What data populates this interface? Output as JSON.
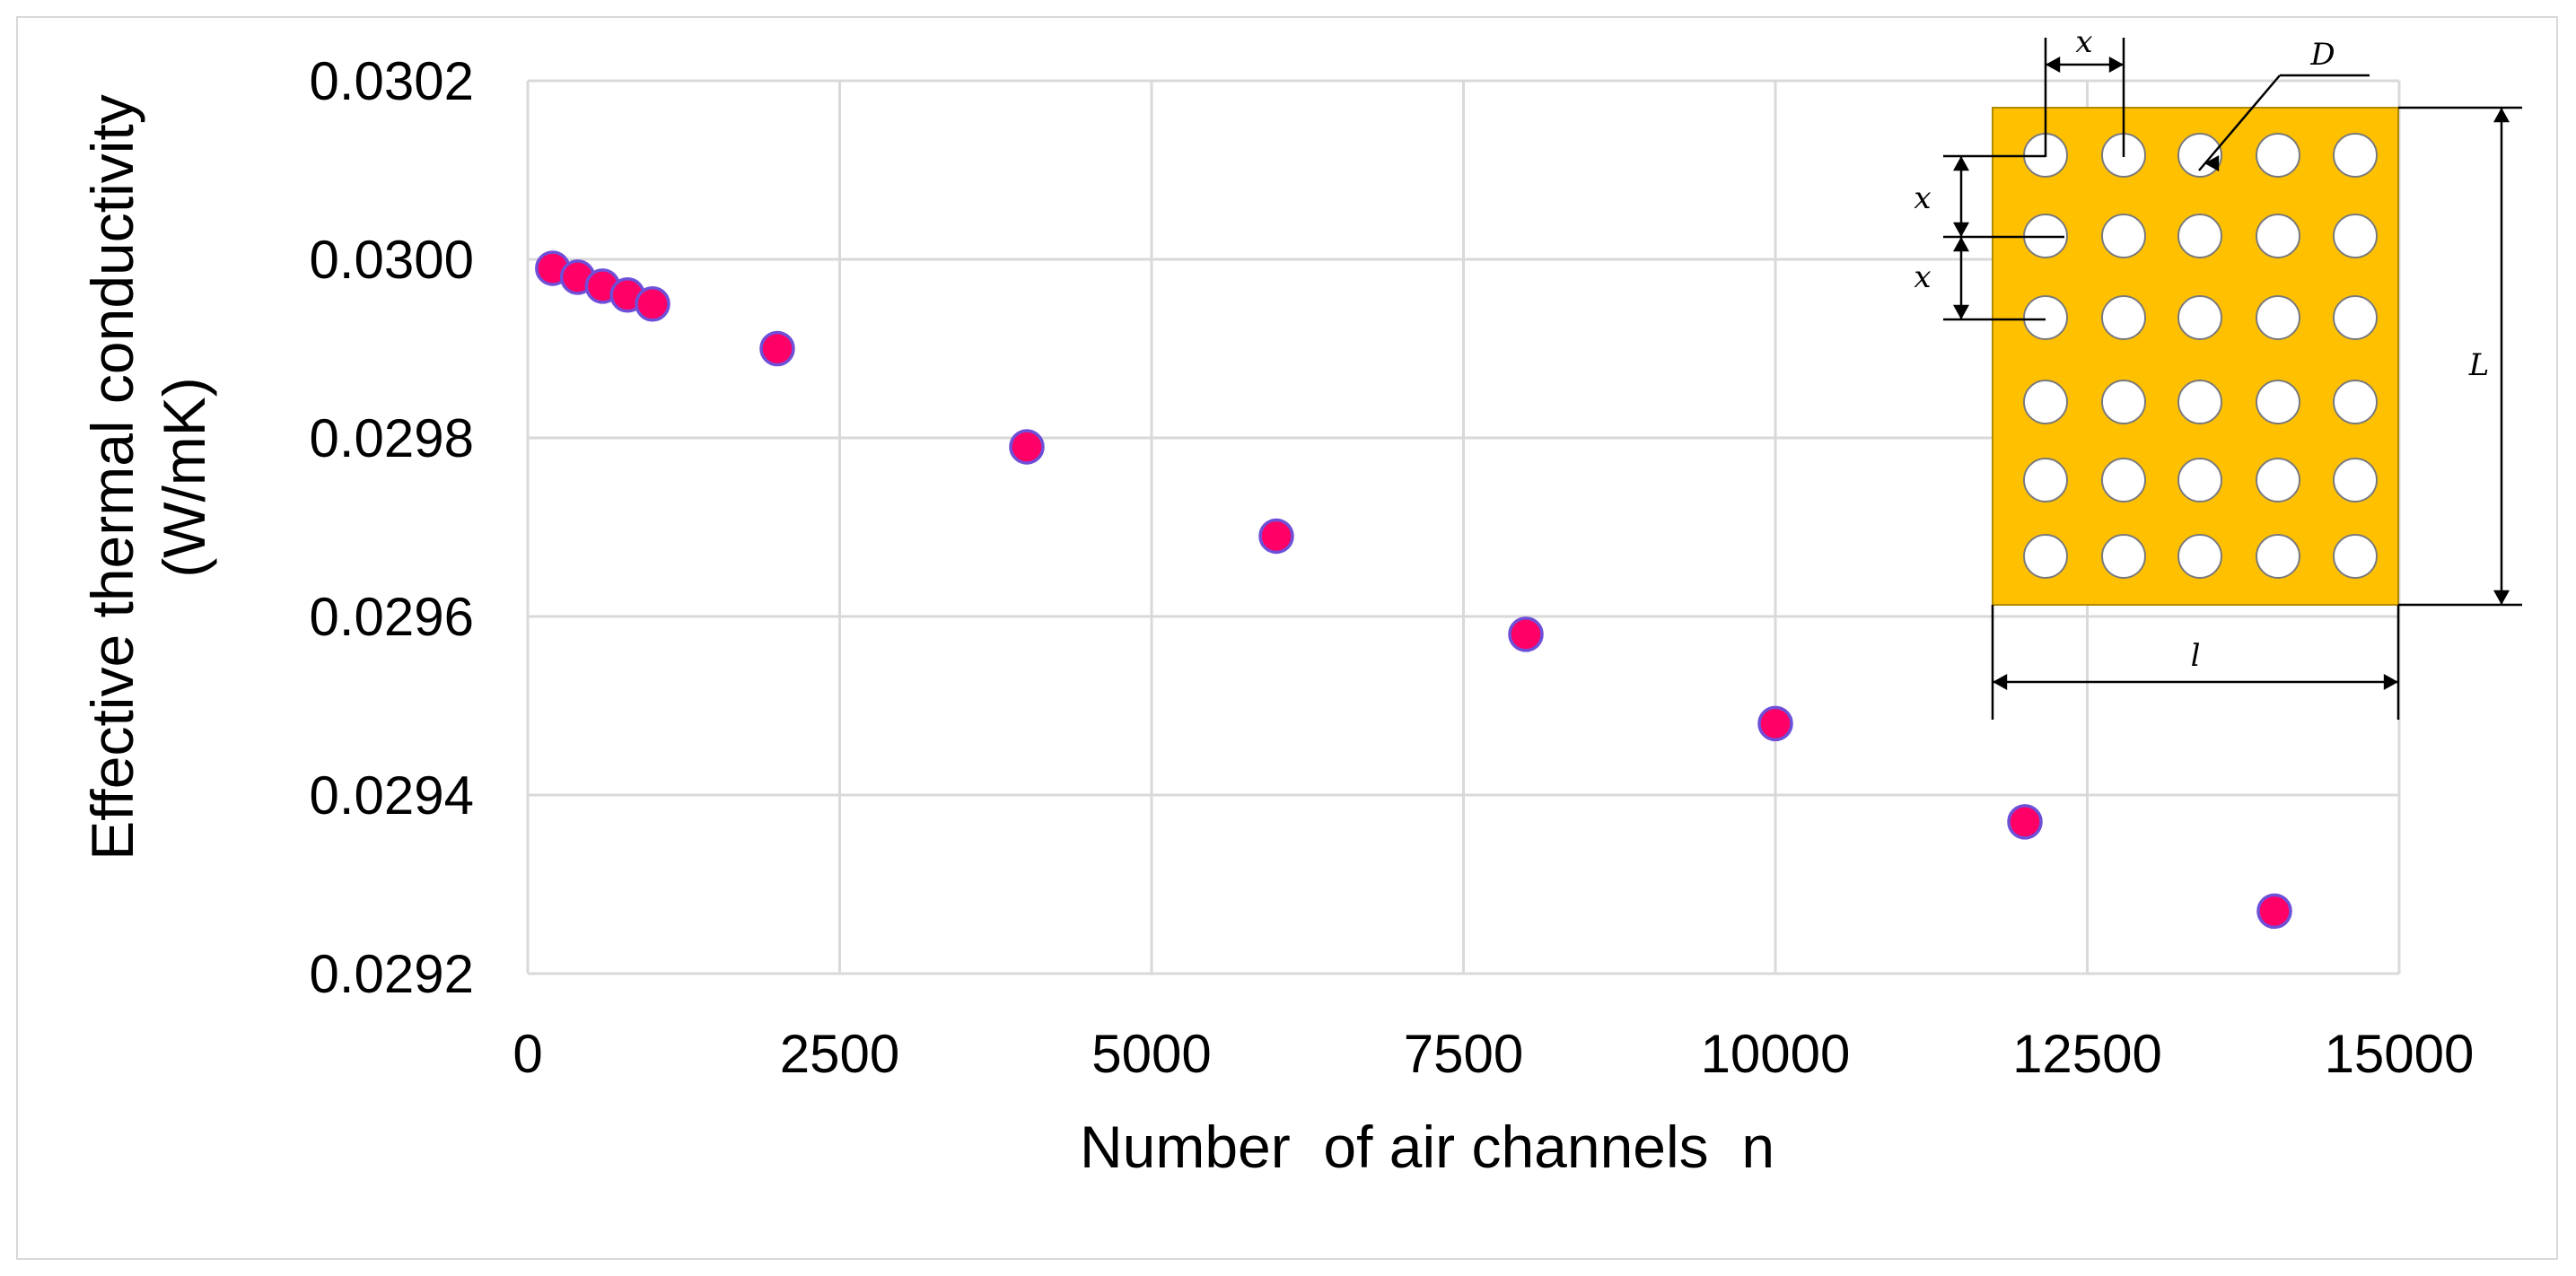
{
  "chart_data": {
    "type": "scatter",
    "title": "",
    "xlabel": "Number  of air channels  n",
    "ylabel_lines": [
      "Effective thermal conductivity",
      "(W/mK)"
    ],
    "xlim": [
      0,
      15000
    ],
    "ylim": [
      0.0292,
      0.0302
    ],
    "x_ticks": [
      0,
      2500,
      5000,
      7500,
      10000,
      12500,
      15000
    ],
    "y_ticks": [
      0.0292,
      0.0294,
      0.0296,
      0.0298,
      0.03,
      0.0302
    ],
    "x_tick_labels": [
      "0",
      "2500",
      "5000",
      "7500",
      "10000",
      "12500",
      "15000"
    ],
    "y_tick_labels": [
      "0.0292",
      "0.0294",
      "0.0296",
      "0.0298",
      "0.0300",
      "0.0302"
    ],
    "grid": true,
    "marker_fill": "#ff0066",
    "marker_edge": "#6e4fd8",
    "points": [
      {
        "x": 200,
        "y": 0.02999
      },
      {
        "x": 400,
        "y": 0.02998
      },
      {
        "x": 600,
        "y": 0.02997
      },
      {
        "x": 800,
        "y": 0.02996
      },
      {
        "x": 1000,
        "y": 0.02995
      },
      {
        "x": 2000,
        "y": 0.0299
      },
      {
        "x": 4000,
        "y": 0.02979
      },
      {
        "x": 6000,
        "y": 0.02969
      },
      {
        "x": 8000,
        "y": 0.02958
      },
      {
        "x": 10000,
        "y": 0.02948
      },
      {
        "x": 12000,
        "y": 0.02937
      },
      {
        "x": 14000,
        "y": 0.02927
      }
    ]
  },
  "inset": {
    "labels": {
      "x": "x",
      "D": "D",
      "L": "L",
      "l": "l"
    },
    "fill_color": "#ffc000",
    "rows": 6,
    "cols": 5
  }
}
